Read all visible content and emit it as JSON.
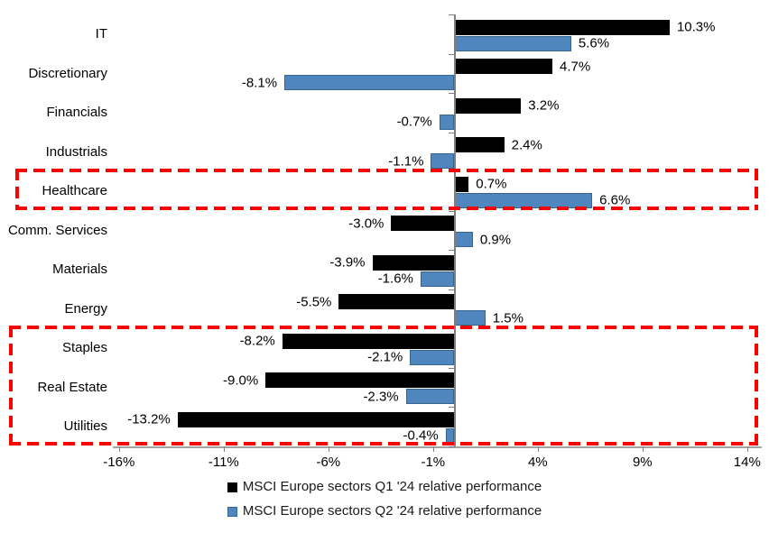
{
  "chart_data": {
    "type": "bar",
    "orientation": "horizontal",
    "title": "",
    "categories": [
      "IT",
      "Discretionary",
      "Financials",
      "Industrials",
      "Healthcare",
      "Comm. Services",
      "Materials",
      "Energy",
      "Staples",
      "Real Estate",
      "Utilities"
    ],
    "series": [
      {
        "name": "MSCI Europe sectors Q1 '24 relative performance",
        "color": "#000000",
        "values": [
          10.3,
          4.7,
          3.2,
          2.4,
          0.7,
          -3.0,
          -3.9,
          -5.5,
          -8.2,
          -9.0,
          -13.2
        ]
      },
      {
        "name": "MSCI Europe sectors Q2 '24 relative performance",
        "color": "#4E86BD",
        "values": [
          5.6,
          -8.1,
          -0.7,
          -1.1,
          6.6,
          0.9,
          -1.6,
          1.5,
          -2.1,
          -2.3,
          -0.4
        ]
      }
    ],
    "value_labels": [
      [
        "10.3%",
        "4.7%",
        "3.2%",
        "2.4%",
        "0.7%",
        "-3.0%",
        "-3.9%",
        "-5.5%",
        "-8.2%",
        "-9.0%",
        "-13.2%"
      ],
      [
        "5.6%",
        "-8.1%",
        "-0.7%",
        "-1.1%",
        "6.6%",
        "0.9%",
        "-1.6%",
        "1.5%",
        "-2.1%",
        "-2.3%",
        "-0.4%"
      ]
    ],
    "x_ticks": [
      {
        "value": -16,
        "label": "-16%"
      },
      {
        "value": -11,
        "label": "-11%"
      },
      {
        "value": -6,
        "label": "-6%"
      },
      {
        "value": -1,
        "label": "-1%"
      },
      {
        "value": 4,
        "label": "4%"
      },
      {
        "value": 9,
        "label": "9%"
      },
      {
        "value": 14,
        "label": "14%"
      }
    ],
    "xlim": [
      -16.3,
      14.8
    ],
    "grid": false,
    "legend_position": "bottom-center",
    "highlight_boxes": [
      {
        "categories": [
          "Healthcare"
        ],
        "style": "red-dashed"
      },
      {
        "categories": [
          "Staples",
          "Real Estate",
          "Utilities"
        ],
        "style": "red-dashed"
      }
    ],
    "highlight_color": "#FF0000"
  }
}
